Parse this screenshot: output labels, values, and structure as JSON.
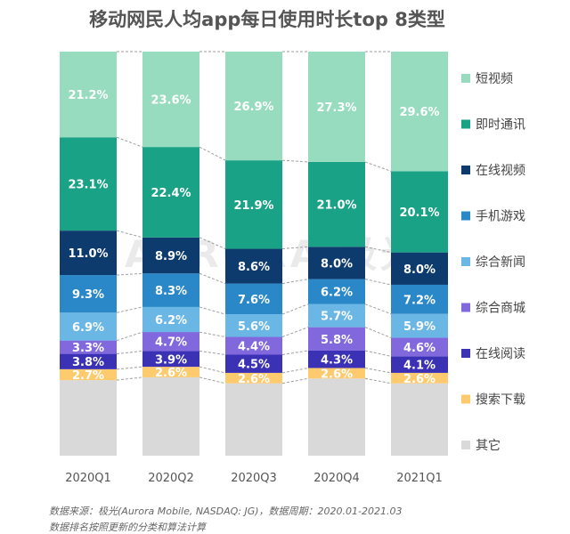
{
  "title": "移动网民人均app每日使用时长top 8类型",
  "watermark": "AURORA 极光",
  "notes": [
    "数据来源：极光(Aurora Mobile, NASDAQ: JG)，数据周期：2020.01-2021.03",
    "数据排名按照更新的分类和算法计算"
  ],
  "chart_data": {
    "type": "bar",
    "stacked": true,
    "percent_stacked": true,
    "categories": [
      "2020Q1",
      "2020Q2",
      "2020Q3",
      "2020Q4",
      "2021Q1"
    ],
    "series": [
      {
        "name": "其它",
        "color": "#d9d9d9",
        "values": [
          null,
          null,
          null,
          null,
          null
        ],
        "labels": [
          "",
          "",
          "",
          "",
          ""
        ]
      },
      {
        "name": "搜索下载",
        "color": "#fdca6e",
        "values": [
          2.7,
          2.6,
          2.6,
          2.6,
          2.6
        ],
        "labels": [
          "2.7%",
          "2.6%",
          "2.6%",
          "2.6%",
          "2.6%"
        ]
      },
      {
        "name": "在线阅读",
        "color": "#3a31b5",
        "values": [
          3.8,
          3.9,
          4.5,
          4.3,
          4.1
        ],
        "labels": [
          "3.8%",
          "3.9%",
          "4.5%",
          "4.3%",
          "4.1%"
        ]
      },
      {
        "name": "综合商城",
        "color": "#8168dd",
        "values": [
          3.3,
          4.7,
          4.4,
          5.8,
          4.6
        ],
        "labels": [
          "3.3%",
          "4.7%",
          "4.4%",
          "5.8%",
          "4.6%"
        ]
      },
      {
        "name": "综合新闻",
        "color": "#6ab7e6",
        "values": [
          6.9,
          6.2,
          5.6,
          5.7,
          5.9
        ],
        "labels": [
          "6.9%",
          "6.2%",
          "5.6%",
          "5.7%",
          "5.9%"
        ]
      },
      {
        "name": "手机游戏",
        "color": "#2a88c9",
        "values": [
          9.3,
          8.3,
          7.6,
          6.2,
          7.2
        ],
        "labels": [
          "9.3%",
          "8.3%",
          "7.6%",
          "6.2%",
          "7.2%"
        ]
      },
      {
        "name": "在线视频",
        "color": "#0d3b6e",
        "values": [
          11.0,
          8.9,
          8.6,
          8.0,
          8.0
        ],
        "labels": [
          "11.0%",
          "8.9%",
          "8.6%",
          "8.0%",
          "8.0%"
        ]
      },
      {
        "name": "即时通讯",
        "color": "#1aa286",
        "values": [
          23.1,
          22.4,
          21.9,
          21.0,
          20.1
        ],
        "labels": [
          "23.1%",
          "22.4%",
          "21.9%",
          "21.0%",
          "20.1%"
        ]
      },
      {
        "name": "短视频",
        "color": "#98dcc0",
        "values": [
          21.2,
          23.6,
          26.9,
          27.3,
          29.6
        ],
        "labels": [
          "21.2%",
          "23.6%",
          "26.9%",
          "27.3%",
          "29.6%"
        ]
      }
    ],
    "legend_order": [
      "短视频",
      "即时通讯",
      "在线视频",
      "手机游戏",
      "综合新闻",
      "综合商城",
      "在线阅读",
      "搜索下载",
      "其它"
    ],
    "legend_position": "right",
    "grid": false,
    "connector_lines": "dashed"
  }
}
